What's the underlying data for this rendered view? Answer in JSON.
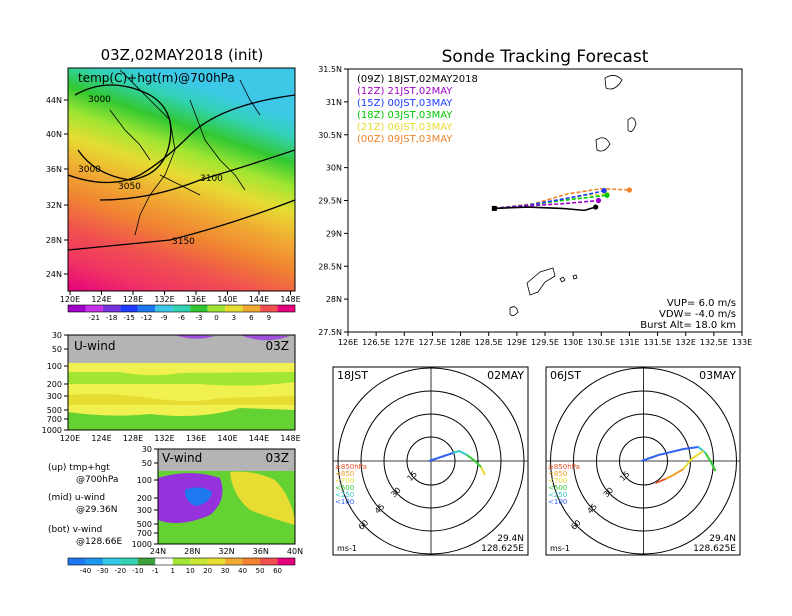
{
  "left_panel": {
    "title": "03Z,02MAY2018 (init)",
    "map_label": "temp(C)+hgt(m)@700hPa",
    "lat_ticks": [
      "44N",
      "40N",
      "36N",
      "32N",
      "28N",
      "24N"
    ],
    "lon_ticks": [
      "120E",
      "124E",
      "128E",
      "132E",
      "136E",
      "140E",
      "144E",
      "148E"
    ],
    "contour_labels": [
      "3000",
      "3000",
      "3050",
      "3100",
      "3150"
    ],
    "temp_colorbar": [
      "-21",
      "-18",
      "-15",
      "-12",
      "-9",
      "-6",
      "-3",
      "0",
      "3",
      "6",
      "9"
    ],
    "uwind_label": "U-wind",
    "uwind_time": "03Z",
    "uwind_pressure_ticks": [
      "30",
      "50",
      "100",
      "200",
      "300",
      "500",
      "700",
      "1000"
    ],
    "uwind_lon_ticks": [
      "120E",
      "124E",
      "128E",
      "132E",
      "136E",
      "140E",
      "144E",
      "148E"
    ],
    "vwind_label": "V-wind",
    "vwind_time": "03Z",
    "vwind_pressure_ticks": [
      "30",
      "50",
      "100",
      "200",
      "300",
      "500",
      "700",
      "1000"
    ],
    "vwind_lat_ticks": [
      "24N",
      "28N",
      "32N",
      "36N",
      "40N"
    ],
    "wind_colorbar": [
      "-40",
      "-30",
      "-20",
      "-10",
      "-1",
      "1",
      "10",
      "20",
      "30",
      "40",
      "50",
      "60"
    ],
    "legend_lines": [
      [
        "(up) tmp+hgt",
        "@700hPa"
      ],
      [
        "(mid) u-wind",
        "@29.36N"
      ],
      [
        "(bot) v-wind",
        "@128.66E"
      ]
    ]
  },
  "tracking": {
    "title": "Sonde Tracking Forecast",
    "legend": [
      {
        "text": "(09Z) 18JST,02MAY2018",
        "color": "#000000"
      },
      {
        "text": "(12Z) 21JST,02MAY",
        "color": "#a000c8"
      },
      {
        "text": "(15Z) 00JST,03MAY",
        "color": "#1e3cff"
      },
      {
        "text": "(18Z) 03JST,03MAY",
        "color": "#00c800"
      },
      {
        "text": "(21Z) 06JST,03MAY",
        "color": "#e6dc32"
      },
      {
        "text": "(00Z) 09JST,03MAY",
        "color": "#f08228"
      }
    ],
    "lat_ticks": [
      "31.5N",
      "31N",
      "30.5N",
      "30N",
      "29.5N",
      "29N",
      "28.5N",
      "28N",
      "27.5N"
    ],
    "lon_ticks": [
      "126E",
      "126.5E",
      "127E",
      "127.5E",
      "128E",
      "128.5E",
      "129E",
      "129.5E",
      "130E",
      "130.5E",
      "131E",
      "131.5E",
      "132E",
      "132.5E",
      "133E"
    ],
    "params": [
      "VUP= 6.0 m/s",
      "VDW= -4.0 m/s",
      "Burst Alt= 18.0 km"
    ]
  },
  "hodographs": [
    {
      "time": "18JST",
      "date": "02MAY",
      "lat": "29.4N",
      "lon": "128.625E",
      "unit": "ms-1",
      "ring_labels": [
        "15",
        "30",
        "45",
        "60"
      ],
      "levels": [
        {
          "text": "≥850hPa",
          "color": "#e6502a"
        },
        {
          "text": "<850",
          "color": "#f0a028"
        },
        {
          "text": "<700",
          "color": "#e6dc32"
        },
        {
          "text": "<500",
          "color": "#32c832"
        },
        {
          "text": "<250",
          "color": "#32c8c8"
        },
        {
          "text": "<100",
          "color": "#3264f0"
        }
      ]
    },
    {
      "time": "06JST",
      "date": "03MAY",
      "lat": "29.4N",
      "lon": "128.625E",
      "unit": "ms-1",
      "ring_labels": [
        "15",
        "30",
        "45",
        "60"
      ],
      "levels": [
        {
          "text": "≥850hPa",
          "color": "#e6502a"
        },
        {
          "text": "<850",
          "color": "#f0a028"
        },
        {
          "text": "<700",
          "color": "#e6dc32"
        },
        {
          "text": "<500",
          "color": "#32c832"
        },
        {
          "text": "<250",
          "color": "#32c8c8"
        },
        {
          "text": "<100",
          "color": "#3264f0"
        }
      ]
    }
  ],
  "chart_data": [
    {
      "type": "line",
      "title": "Sonde Tracking Forecast",
      "xlim": [
        126,
        133
      ],
      "ylim": [
        27.5,
        31.5
      ],
      "launch": [
        128.6,
        29.38
      ],
      "series": [
        {
          "name": "(09Z) 18JST,02MAY2018",
          "color": "#000000",
          "x": [
            128.6,
            129.2,
            129.8,
            130.2,
            130.4
          ],
          "y": [
            29.38,
            29.4,
            29.38,
            29.35,
            29.4
          ]
        },
        {
          "name": "(12Z) 21JST,02MAY",
          "color": "#a000c8",
          "x": [
            128.6,
            129.2,
            129.8,
            130.2,
            130.45
          ],
          "y": [
            29.38,
            29.42,
            29.45,
            29.48,
            29.5
          ]
        },
        {
          "name": "(15Z) 00JST,03MAY",
          "color": "#1e3cff",
          "x": [
            128.6,
            129.2,
            129.8,
            130.3,
            130.55
          ],
          "y": [
            29.38,
            29.43,
            29.52,
            29.6,
            29.65
          ]
        },
        {
          "name": "(18Z) 03JST,03MAY",
          "color": "#00c800",
          "x": [
            128.6,
            129.2,
            129.8,
            130.3,
            130.6
          ],
          "y": [
            29.38,
            29.43,
            29.5,
            29.55,
            29.58
          ]
        },
        {
          "name": "(21Z) 06JST,03MAY",
          "color": "#e6dc32",
          "x": [
            128.6,
            129.2,
            129.7,
            130.2,
            130.6
          ],
          "y": [
            29.38,
            29.42,
            29.5,
            29.58,
            29.6
          ]
        },
        {
          "name": "(00Z) 09JST,03MAY",
          "color": "#f08228",
          "x": [
            128.6,
            129.3,
            129.9,
            130.5,
            131.0
          ],
          "y": [
            29.38,
            29.45,
            29.6,
            29.68,
            29.66
          ]
        }
      ]
    }
  ]
}
